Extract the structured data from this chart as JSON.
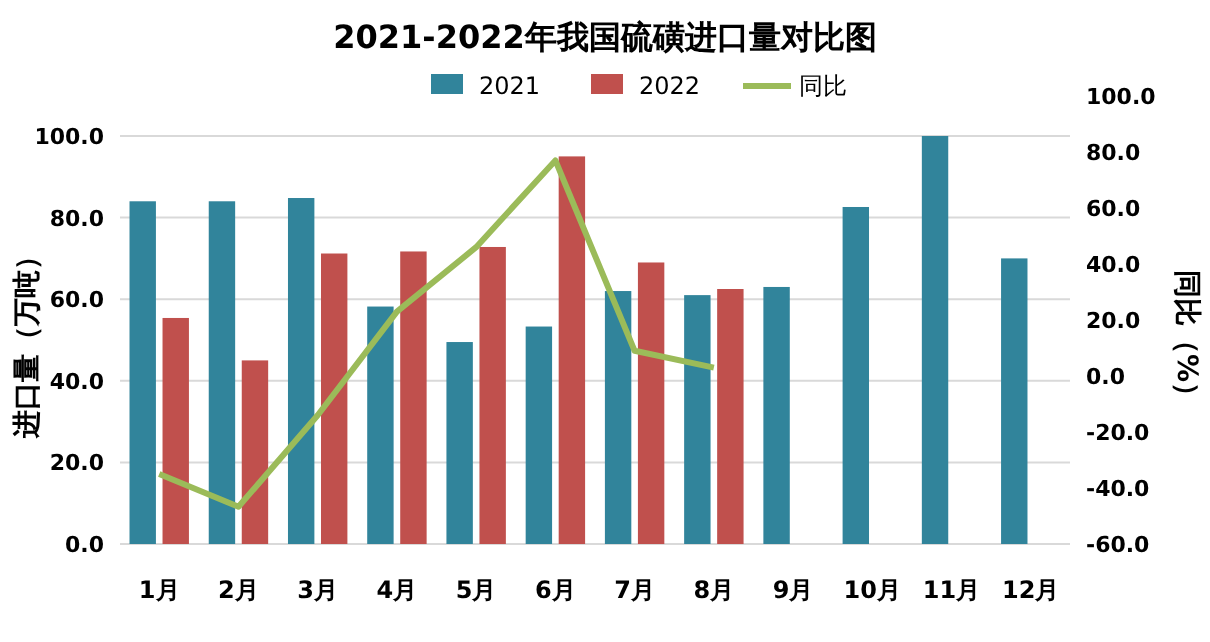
{
  "chart_data": {
    "type": "bar",
    "title": "2021-2022年我国硫磺进口量对比图",
    "ylabel": "进口量（万吨）",
    "y2label": "同比（%）",
    "categories": [
      "1月",
      "2月",
      "3月",
      "4月",
      "5月",
      "6月",
      "7月",
      "8月",
      "9月",
      "10月",
      "11月",
      "12月"
    ],
    "series": [
      {
        "name": "2021",
        "color": "#31849b",
        "values": [
          84,
          84,
          84.8,
          58.2,
          49.5,
          53.3,
          62,
          61,
          63,
          82.6,
          100,
          70
        ]
      },
      {
        "name": "2022",
        "color": "#c0504d",
        "values": [
          55.4,
          45,
          71.2,
          71.7,
          72.8,
          95,
          69,
          62.5,
          null,
          null,
          null,
          null
        ]
      },
      {
        "name": "同比",
        "type": "line",
        "axis": "y2",
        "color": "#9bbb59",
        "values": [
          -35,
          -46.7,
          -14,
          23,
          46,
          77,
          9,
          3,
          null,
          null,
          null,
          null
        ]
      }
    ],
    "ylim": [
      0,
      100
    ],
    "yticks": [
      {
        "value": 0,
        "label": "0.0"
      },
      {
        "value": 20,
        "label": "20.0"
      },
      {
        "value": 40,
        "label": "40.0"
      },
      {
        "value": 60,
        "label": "60.0"
      },
      {
        "value": 80,
        "label": "80.0"
      },
      {
        "value": 100,
        "label": "100.0"
      }
    ],
    "y2lim": [
      -60,
      100
    ],
    "y2ticks": [
      {
        "value": -60,
        "label": "-60.0"
      },
      {
        "value": -40,
        "label": "-40.0"
      },
      {
        "value": -20,
        "label": "-20.0"
      },
      {
        "value": 0,
        "label": "0.0"
      },
      {
        "value": 20,
        "label": "20.0"
      },
      {
        "value": 40,
        "label": "40.0"
      },
      {
        "value": 60,
        "label": "60.0"
      },
      {
        "value": 80,
        "label": "80.0"
      },
      {
        "value": 100,
        "label": "100.0"
      }
    ],
    "grid": "y",
    "legend": "top"
  }
}
